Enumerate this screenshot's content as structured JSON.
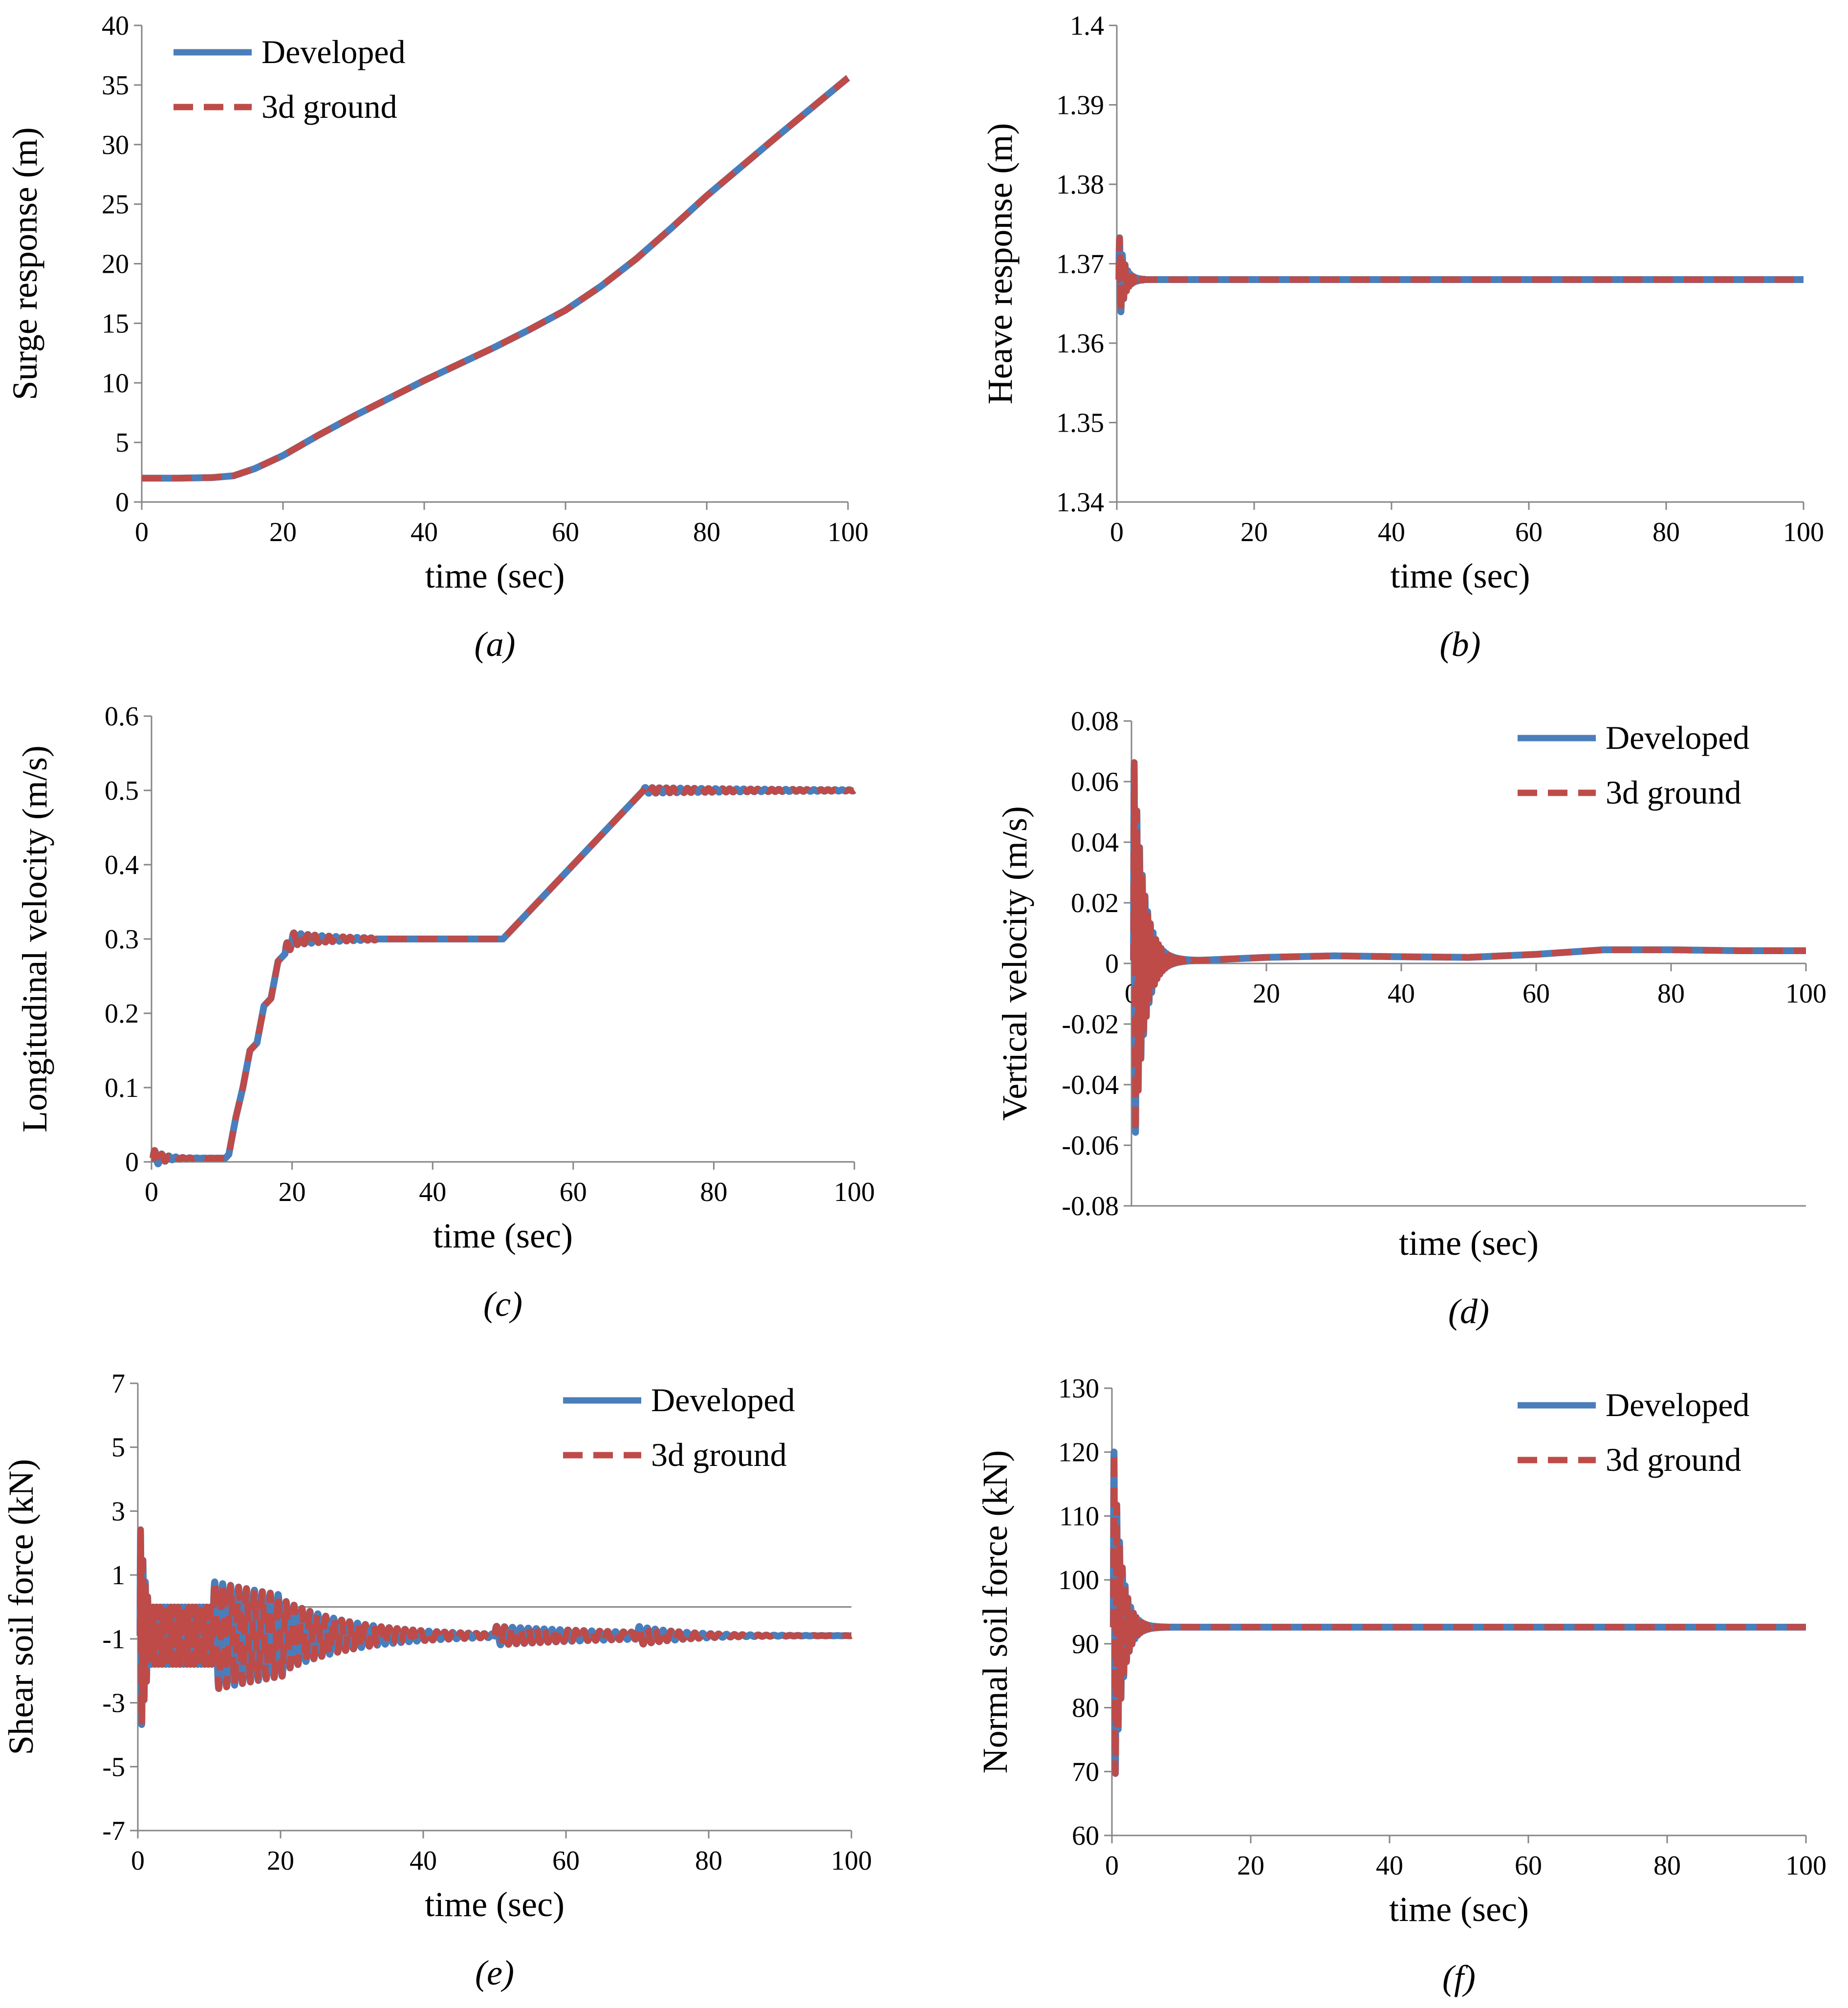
{
  "colors": {
    "developed": "#4a7ebb",
    "ground": "#be4b48",
    "axis": "#868686",
    "text": "#000000"
  },
  "chart_data": [
    {
      "id": "a",
      "type": "line",
      "caption": "(a)",
      "xlabel": "time (sec)",
      "ylabel": "Surge response (m)",
      "xlim": [
        0,
        100
      ],
      "ylim": [
        0,
        40
      ],
      "xticks": [
        "0",
        "20",
        "40",
        "60",
        "80",
        "100"
      ],
      "yticks": [
        "0",
        "5",
        "10",
        "15",
        "20",
        "25",
        "30",
        "35",
        "40"
      ],
      "legend": {
        "position": "top-left",
        "entries": [
          "Developed",
          "3d ground"
        ]
      },
      "zero_line": false,
      "oscillation": [],
      "series": [
        {
          "name": "Developed",
          "style": "solid",
          "x": [
            0,
            5,
            10,
            13,
            16,
            20,
            25,
            30,
            40,
            50,
            55,
            60,
            65,
            70,
            75,
            80,
            90,
            100
          ],
          "y": [
            2.0,
            2.0,
            2.05,
            2.2,
            2.8,
            3.9,
            5.6,
            7.2,
            10.2,
            13.0,
            14.5,
            16.1,
            18.1,
            20.4,
            23.0,
            25.7,
            30.7,
            35.6
          ]
        },
        {
          "name": "3d ground",
          "style": "dashed",
          "x": [
            0,
            5,
            10,
            13,
            16,
            20,
            25,
            30,
            40,
            50,
            55,
            60,
            65,
            70,
            75,
            80,
            90,
            100
          ],
          "y": [
            2.0,
            2.0,
            2.05,
            2.2,
            2.8,
            3.9,
            5.6,
            7.2,
            10.2,
            13.0,
            14.5,
            16.1,
            18.1,
            20.4,
            23.0,
            25.7,
            30.7,
            35.6
          ]
        }
      ]
    },
    {
      "id": "b",
      "type": "line",
      "caption": "(b)",
      "xlabel": "time (sec)",
      "ylabel": "Heave response (m)",
      "xlim": [
        0,
        100
      ],
      "ylim": [
        1.34,
        1.4
      ],
      "xticks": [
        "0",
        "20",
        "40",
        "60",
        "80",
        "100"
      ],
      "yticks": [
        "1.34",
        "1.35",
        "1.36",
        "1.37",
        "1.38",
        "1.39",
        "1.4"
      ],
      "legend": null,
      "zero_line": false,
      "oscillation": [
        {
          "t0": 0.3,
          "t1": 4,
          "freq": 2.5,
          "amp": 0.006,
          "decay": 1.3,
          "base": 1.368
        }
      ],
      "series": [
        {
          "name": "Developed",
          "style": "solid",
          "x": [
            0,
            100
          ],
          "y": [
            1.368,
            1.368
          ]
        },
        {
          "name": "3d ground",
          "style": "dashed",
          "x": [
            0,
            100
          ],
          "y": [
            1.368,
            1.368
          ]
        }
      ]
    },
    {
      "id": "c",
      "type": "line",
      "caption": "(c)",
      "xlabel": "time (sec)",
      "ylabel": "Longitudinal velocity (m/s)",
      "xlim": [
        0,
        100
      ],
      "ylim": [
        0,
        0.6
      ],
      "xticks": [
        "0",
        "20",
        "40",
        "60",
        "80",
        "100"
      ],
      "yticks": [
        "0",
        "0.1",
        "0.2",
        "0.3",
        "0.4",
        "0.5",
        "0.6"
      ],
      "legend": null,
      "zero_line": false,
      "oscillation": [
        {
          "t0": 0.2,
          "t1": 10,
          "freq": 1.0,
          "amp": 0.012,
          "decay": 0.6,
          "base": 0.005
        },
        {
          "t0": 19,
          "t1": 32,
          "freq": 1.0,
          "amp": 0.01,
          "decay": 0.15,
          "base": 0.3
        },
        {
          "t0": 70,
          "t1": 100,
          "freq": 1.0,
          "amp": 0.004,
          "decay": 0.05,
          "base": 0.5
        }
      ],
      "series": [
        {
          "name": "Developed",
          "style": "solid",
          "x": [
            0,
            10.5,
            11,
            12,
            13,
            14,
            15,
            16,
            17,
            18,
            19,
            20,
            30,
            50,
            52,
            55,
            60,
            65,
            70,
            100
          ],
          "y": [
            0.005,
            0.005,
            0.01,
            0.06,
            0.1,
            0.15,
            0.16,
            0.21,
            0.22,
            0.27,
            0.28,
            0.3,
            0.3,
            0.3,
            0.32,
            0.35,
            0.4,
            0.45,
            0.5,
            0.5
          ]
        },
        {
          "name": "3d ground",
          "style": "dashed",
          "x": [
            0,
            10.5,
            11,
            12,
            13,
            14,
            15,
            16,
            17,
            18,
            19,
            20,
            30,
            50,
            52,
            55,
            60,
            65,
            70,
            100
          ],
          "y": [
            0.005,
            0.005,
            0.01,
            0.06,
            0.1,
            0.15,
            0.16,
            0.21,
            0.22,
            0.27,
            0.28,
            0.3,
            0.3,
            0.3,
            0.32,
            0.35,
            0.4,
            0.45,
            0.5,
            0.5
          ]
        }
      ]
    },
    {
      "id": "d",
      "type": "line",
      "caption": "(d)",
      "xlabel": "time (sec)",
      "ylabel": "Vertical velocity (m/s)",
      "xlim": [
        0,
        100
      ],
      "ylim": [
        -0.08,
        0.08
      ],
      "xticks": [
        "0",
        "20",
        "40",
        "60",
        "80",
        "100"
      ],
      "yticks": [
        "-0.08",
        "-0.06",
        "-0.04",
        "-0.02",
        "0",
        "0.02",
        "0.04",
        "0.06",
        "0.08"
      ],
      "legend": {
        "position": "top-right",
        "entries": [
          "Developed",
          "3d ground"
        ]
      },
      "zero_line": true,
      "oscillation": [
        {
          "t0": 0.3,
          "t1": 12,
          "freq": 2.5,
          "amp": 0.07,
          "decay": 0.7,
          "base": 0.001
        }
      ],
      "series": [
        {
          "name": "Developed",
          "style": "solid",
          "x": [
            0,
            10,
            20,
            30,
            40,
            50,
            60,
            70,
            80,
            90,
            100
          ],
          "y": [
            0.001,
            0.001,
            0.002,
            0.0025,
            0.0022,
            0.002,
            0.003,
            0.0045,
            0.0045,
            0.0042,
            0.0042
          ]
        },
        {
          "name": "3d ground",
          "style": "dashed",
          "x": [
            0,
            10,
            20,
            30,
            40,
            50,
            60,
            70,
            80,
            90,
            100
          ],
          "y": [
            0.001,
            0.001,
            0.002,
            0.0025,
            0.0022,
            0.002,
            0.003,
            0.0045,
            0.0045,
            0.0042,
            0.0042
          ]
        }
      ]
    },
    {
      "id": "e",
      "type": "line",
      "caption": "(e)",
      "xlabel": "time (sec)",
      "ylabel": "Shear soil force (kN)",
      "xlim": [
        0,
        100
      ],
      "ylim": [
        -7,
        7
      ],
      "xticks": [
        "0",
        "20",
        "40",
        "60",
        "80",
        "100"
      ],
      "yticks": [
        "-7",
        "-5",
        "-3",
        "-1",
        "1",
        "3",
        "5",
        "7"
      ],
      "legend": {
        "position": "top-right",
        "entries": [
          "Developed",
          "3d ground"
        ]
      },
      "zero_line": true,
      "oscillation": [
        {
          "t0": 0.3,
          "t1": 1.5,
          "freq": 3.0,
          "amp": 3.6,
          "decay": 1.0,
          "base": -0.5
        },
        {
          "t0": 1.5,
          "t1": 10.5,
          "freq": 2.0,
          "amp": 0.9,
          "decay": 0.0,
          "base": -0.7
        },
        {
          "t0": 10.5,
          "t1": 20.5,
          "freq": 0.9,
          "amp": 1.7,
          "decay": 0.03,
          "base": -0.1
        },
        {
          "t0": 20.5,
          "t1": 50,
          "freq": 0.9,
          "amp": 1.1,
          "decay": 0.1,
          "base": -0.9
        },
        {
          "t0": 50,
          "t1": 70,
          "freq": 0.9,
          "amp": 0.3,
          "decay": 0.05,
          "base": -0.4
        },
        {
          "t0": 70,
          "t1": 100,
          "freq": 0.9,
          "amp": 0.3,
          "decay": 0.15,
          "base": -0.9
        }
      ],
      "series": [
        {
          "name": "Developed",
          "style": "solid",
          "x": [
            0,
            100
          ],
          "y": [
            -0.9,
            -0.9
          ]
        },
        {
          "name": "3d ground",
          "style": "dashed",
          "x": [
            0,
            100
          ],
          "y": [
            -0.9,
            -0.9
          ]
        }
      ]
    },
    {
      "id": "f",
      "type": "line",
      "caption": "(f)",
      "xlabel": "time (sec)",
      "ylabel": "Normal soil force (kN)",
      "xlim": [
        0,
        100
      ],
      "ylim": [
        60,
        130
      ],
      "xticks": [
        "0",
        "20",
        "40",
        "60",
        "80",
        "100"
      ],
      "yticks": [
        "60",
        "70",
        "80",
        "90",
        "100",
        "110",
        "120",
        "130"
      ],
      "legend": {
        "position": "top-right",
        "entries": [
          "Developed",
          "3d ground"
        ]
      },
      "zero_line": false,
      "oscillation": [
        {
          "t0": 0.2,
          "t1": 12,
          "freq": 2.5,
          "amp": 30,
          "decay": 0.9,
          "base": 92.6
        }
      ],
      "series": [
        {
          "name": "Developed",
          "style": "solid",
          "x": [
            0,
            100
          ],
          "y": [
            92.6,
            92.6
          ]
        },
        {
          "name": "3d ground",
          "style": "dashed",
          "x": [
            0,
            100
          ],
          "y": [
            92.6,
            92.6
          ]
        }
      ]
    }
  ]
}
